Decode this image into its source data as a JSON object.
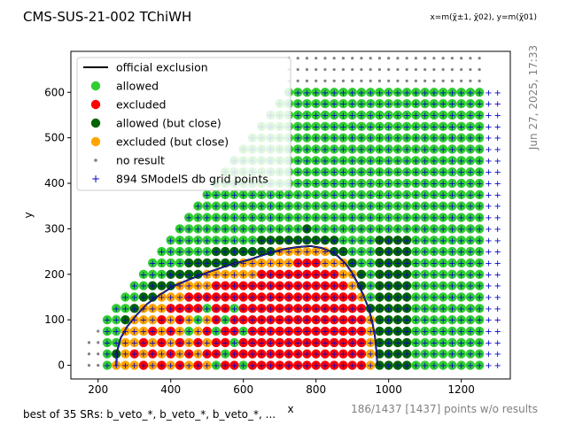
{
  "chart_data": {
    "type": "scatter",
    "title": "CMS-SUS-21-002 TChiWH",
    "axis_note": "x=m(χ̃±1, χ̃02), y=m(χ̃01)",
    "xlabel": "x",
    "ylabel": "y",
    "xlim": [
      125,
      1335
    ],
    "ylim": [
      -30,
      690
    ],
    "xticks": [
      "200",
      "400",
      "600",
      "800",
      "1000",
      "1200"
    ],
    "yticks": [
      "0",
      "100",
      "200",
      "300",
      "400",
      "500",
      "600"
    ],
    "grid": false,
    "legend_position": "top-left",
    "legend": [
      {
        "label": "official exclusion",
        "marker": "line",
        "color": "#000000"
      },
      {
        "label": "allowed",
        "marker": "circle",
        "color": "#32cd32"
      },
      {
        "label": "excluded",
        "marker": "circle",
        "color": "#ff0000"
      },
      {
        "label": "allowed (but close)",
        "marker": "circle",
        "color": "#006400"
      },
      {
        "label": "excluded (but close)",
        "marker": "circle",
        "color": "#ffa500"
      },
      {
        "label": "no result",
        "marker": "dot",
        "color": "#808080"
      },
      {
        "label": "894 SModelS db grid points",
        "marker": "plus",
        "color": "#0000cc"
      }
    ],
    "grid_spacing": {
      "x": 25,
      "y": 25
    },
    "boundary_line": {
      "name": "official exclusion",
      "x": [
        250,
        252,
        262,
        280,
        305,
        335,
        370,
        410,
        455,
        505,
        560,
        615,
        665,
        710,
        750,
        785,
        815,
        840,
        860,
        880,
        898,
        915,
        930,
        945,
        955,
        962,
        966,
        968,
        970
      ],
      "y": [
        0,
        30,
        60,
        85,
        110,
        135,
        155,
        175,
        190,
        205,
        220,
        232,
        245,
        255,
        260,
        262,
        258,
        250,
        240,
        225,
        205,
        180,
        155,
        125,
        95,
        65,
        35,
        10,
        0
      ]
    },
    "regions": {
      "excluded_core_x": [
        620,
        940
      ],
      "excluded_core_ymax": 230,
      "orange_band_width": 35,
      "close_band_width": 30,
      "upper_diagonal_offset": 50,
      "grid_right_edge": 1250,
      "no_result_top_row": [
        625,
        650,
        675
      ]
    }
  },
  "footer": {
    "left_text": "best of 35 SRs: b_veto_*, b_veto_*, b_veto_*, ...",
    "right_text": "186/1437 [1437] points w/o results"
  },
  "timestamp": "Jun 27, 2025, 17:33"
}
